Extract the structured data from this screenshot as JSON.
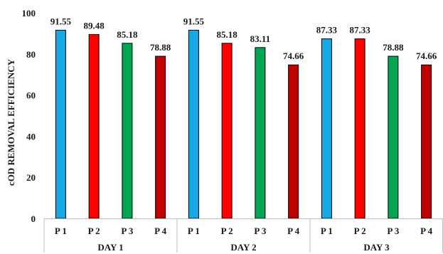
{
  "chart_data": {
    "type": "bar",
    "title": "",
    "xlabel": "",
    "ylabel": "cOD REMOVAL EFFICIENCY",
    "ylim": [
      0,
      100
    ],
    "yticks": [
      0,
      20,
      40,
      60,
      80,
      100
    ],
    "grid": false,
    "legend": "none",
    "groups": [
      {
        "label": "DAY 1",
        "bars": [
          {
            "label": "P 1",
            "value": 91.55,
            "value_label": "91.55",
            "color": "#17a9e6"
          },
          {
            "label": "P 2",
            "value": 89.48,
            "value_label": "89.48",
            "color": "#ff0000"
          },
          {
            "label": "P 3",
            "value": 85.18,
            "value_label": "85.18",
            "color": "#00a651"
          },
          {
            "label": "P 4",
            "value": 78.88,
            "value_label": "78.88",
            "color": "#c00000"
          }
        ]
      },
      {
        "label": "DAY 2",
        "bars": [
          {
            "label": "P 1",
            "value": 91.55,
            "value_label": "91.55",
            "color": "#17a9e6"
          },
          {
            "label": "P 2",
            "value": 85.18,
            "value_label": "85.18",
            "color": "#ff0000"
          },
          {
            "label": "P 3",
            "value": 83.11,
            "value_label": "83.11",
            "color": "#00a651"
          },
          {
            "label": "P 4",
            "value": 74.66,
            "value_label": "74.66",
            "color": "#c00000"
          }
        ]
      },
      {
        "label": "DAY 3",
        "bars": [
          {
            "label": "P 1",
            "value": 87.33,
            "value_label": "87.33",
            "color": "#17a9e6"
          },
          {
            "label": "P 2",
            "value": 87.33,
            "value_label": "87.33",
            "color": "#ff0000"
          },
          {
            "label": "P 3",
            "value": 78.88,
            "value_label": "78.88",
            "color": "#00a651"
          },
          {
            "label": "P 4",
            "value": 74.66,
            "value_label": "74.66",
            "color": "#c00000"
          }
        ]
      }
    ],
    "colors": {
      "axis": "#bfbfbf",
      "bar_outline": "#000000",
      "text": "#1a1a1a"
    }
  }
}
